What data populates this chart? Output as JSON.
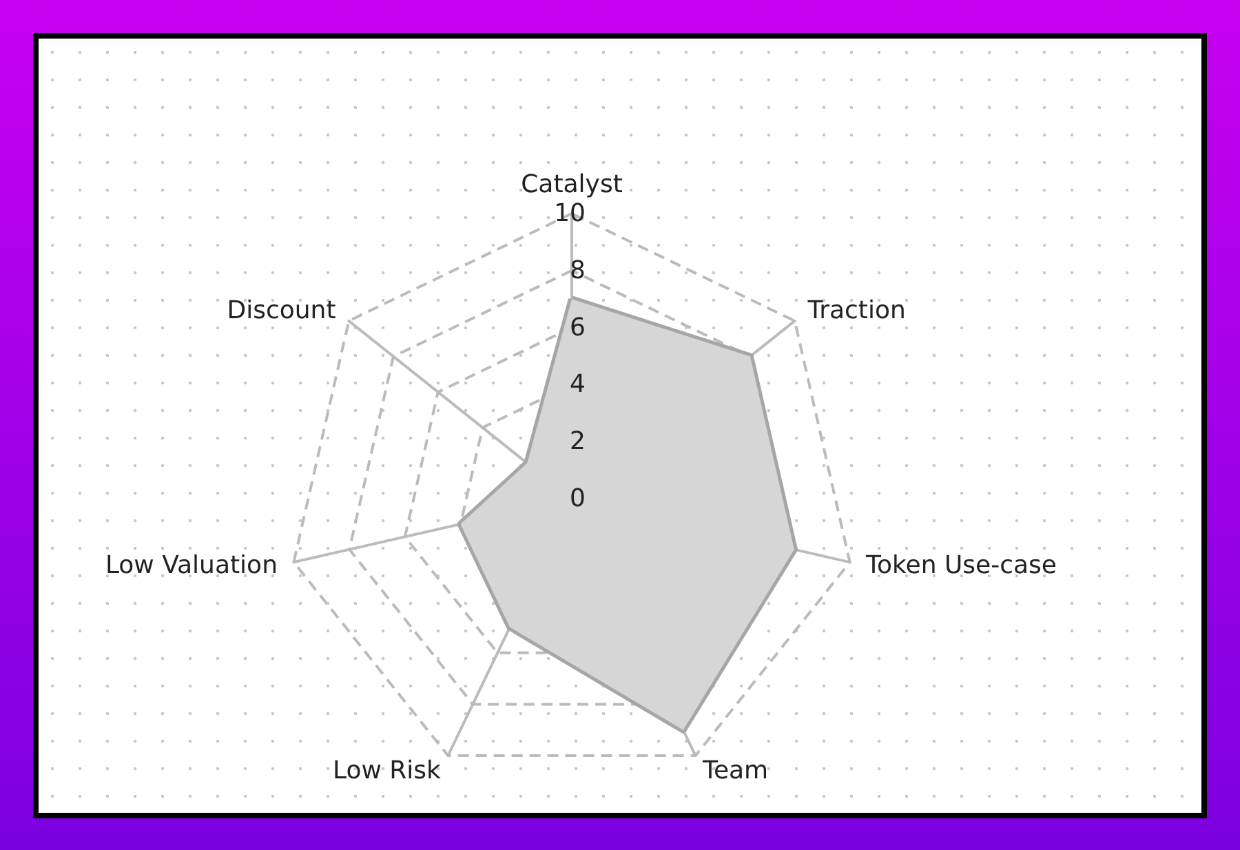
{
  "chart_data": {
    "type": "radar",
    "categories": [
      "Catalyst",
      "Traction",
      "Token Use-case",
      "Team",
      "Low Risk",
      "Low Valuation",
      "Discount"
    ],
    "series": [
      {
        "color": "#a6a6a6",
        "values": [
          7,
          8,
          8,
          9,
          5,
          4,
          2
        ]
      }
    ],
    "ylim": [
      0,
      10
    ],
    "yticks": [
      0,
      2,
      4,
      6,
      8,
      10
    ]
  }
}
